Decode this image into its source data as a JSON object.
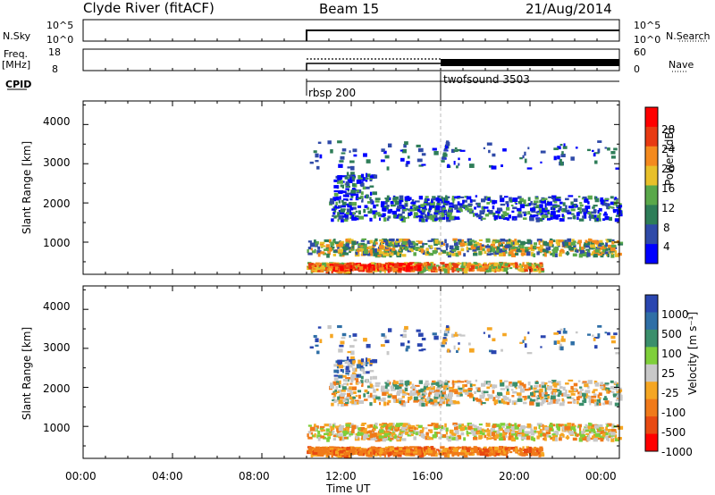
{
  "header": {
    "station": "Clyde River (fitACF)",
    "beam": "Beam 15",
    "date": "21/Aug/2014"
  },
  "panels": {
    "nsky_label": "N.Sky",
    "nsearch_label": "N.Search",
    "freq_label": "Freq.",
    "freq_unit": "[MHz]",
    "nave_label": "Nave",
    "cpid_label": "CPID",
    "nsky_ticks": [
      "10^5",
      "10^0"
    ],
    "nsearch_ticks": [
      "10^5",
      "10^0"
    ],
    "freq_ticks": [
      "18",
      "8"
    ],
    "nave_ticks": [
      "60",
      "0"
    ]
  },
  "cpid_segments": [
    {
      "label": "rbsp 200",
      "start": "10:00",
      "end": "16:00"
    },
    {
      "label": "twofsound 3503",
      "start": "16:00",
      "end": "00:00"
    }
  ],
  "colorbars": {
    "power_label": "Power [dB]",
    "power_ticks": [
      "28",
      "24",
      "20",
      "16",
      "12",
      "8",
      "4"
    ],
    "power_colors": [
      "#0000ff",
      "#2f4aa8",
      "#2e7d58",
      "#5aa84a",
      "#e8c02a",
      "#f48a1e",
      "#e83a12",
      "#ff0000"
    ],
    "velocity_label": "Velocity [m s⁻¹]",
    "velocity_ticks": [
      "1000",
      "500",
      "100",
      "25",
      "-25",
      "-100",
      "-500",
      "-1000"
    ],
    "velocity_colors": [
      "#2a46b0",
      "#2f6fa6",
      "#3b8f6c",
      "#7fcf3a",
      "#c8c8c8",
      "#f5a623",
      "#f07a1a",
      "#e84a12",
      "#ff0000"
    ]
  },
  "chart_data": {
    "type": "heatmap",
    "xlabel": "Time UT",
    "ylabel": "Slant Range [km]",
    "x_ticks": [
      "00:00",
      "04:00",
      "08:00",
      "12:00",
      "16:00",
      "20:00",
      "00:00"
    ],
    "y_ticks": [
      "4000",
      "3000",
      "2000",
      "1000"
    ],
    "x_range_hours": [
      0,
      24
    ],
    "y_range_km": [
      180,
      4600
    ],
    "data_start_hour": 10,
    "cpid_change_hour": 16,
    "power_bands": [
      {
        "t0": 10.0,
        "t1": 20.5,
        "r0": 300,
        "r1": 500,
        "level": "high"
      },
      {
        "t0": 11.0,
        "t1": 15.0,
        "r0": 320,
        "r1": 480,
        "level": "max"
      },
      {
        "t0": 10.0,
        "t1": 24.0,
        "r0": 700,
        "r1": 1100,
        "level": "medium"
      },
      {
        "t0": 11.0,
        "t1": 24.0,
        "r0": 1600,
        "r1": 2200,
        "level": "low"
      },
      {
        "t0": 11.2,
        "t1": 13.0,
        "r0": 2200,
        "r1": 2800,
        "level": "low"
      },
      {
        "t0": 10.0,
        "t1": 24.0,
        "r0": 2900,
        "r1": 3600,
        "level": "sparse"
      }
    ]
  }
}
